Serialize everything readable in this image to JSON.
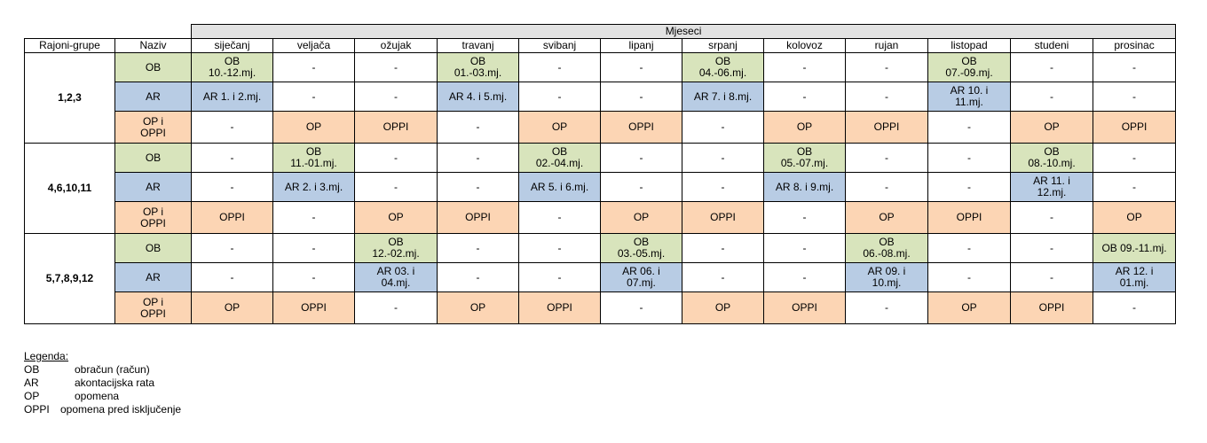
{
  "header": {
    "months_label": "Mjeseci",
    "group_col": "Rajoni-grupe",
    "name_col": "Naziv",
    "months": [
      "siječanj",
      "veljača",
      "ožujak",
      "travanj",
      "svibanj",
      "lipanj",
      "srpanj",
      "kolovoz",
      "rujan",
      "listopad",
      "studeni",
      "prosinac"
    ]
  },
  "groups": [
    {
      "label": "1,2,3",
      "rows": [
        {
          "type": "OB",
          "cells": [
            {
              "t": "OB\n10.-12.mj.",
              "c": "ob"
            },
            {
              "t": "-",
              "c": "none"
            },
            {
              "t": "-",
              "c": "none"
            },
            {
              "t": "OB\n01.-03.mj.",
              "c": "ob"
            },
            {
              "t": "-",
              "c": "none"
            },
            {
              "t": "-",
              "c": "none"
            },
            {
              "t": "OB\n04.-06.mj.",
              "c": "ob"
            },
            {
              "t": "-",
              "c": "none"
            },
            {
              "t": "-",
              "c": "none"
            },
            {
              "t": "OB\n07.-09.mj.",
              "c": "ob"
            },
            {
              "t": "-",
              "c": "none"
            },
            {
              "t": "-",
              "c": "none"
            }
          ]
        },
        {
          "type": "AR",
          "cells": [
            {
              "t": "AR 1. i 2.mj.",
              "c": "ar"
            },
            {
              "t": "-",
              "c": "none"
            },
            {
              "t": "-",
              "c": "none"
            },
            {
              "t": "AR 4. i 5.mj.",
              "c": "ar"
            },
            {
              "t": "-",
              "c": "none"
            },
            {
              "t": "-",
              "c": "none"
            },
            {
              "t": "AR 7. i 8.mj.",
              "c": "ar"
            },
            {
              "t": "-",
              "c": "none"
            },
            {
              "t": "-",
              "c": "none"
            },
            {
              "t": "AR 10. i\n11.mj.",
              "c": "ar"
            },
            {
              "t": "-",
              "c": "none"
            },
            {
              "t": "-",
              "c": "none"
            }
          ]
        },
        {
          "type": "OP i\nOPPI",
          "cells": [
            {
              "t": "-",
              "c": "none"
            },
            {
              "t": "OP",
              "c": "op"
            },
            {
              "t": "OPPI",
              "c": "op"
            },
            {
              "t": "-",
              "c": "none"
            },
            {
              "t": "OP",
              "c": "op"
            },
            {
              "t": "OPPI",
              "c": "op"
            },
            {
              "t": "-",
              "c": "none"
            },
            {
              "t": "OP",
              "c": "op"
            },
            {
              "t": "OPPI",
              "c": "op"
            },
            {
              "t": "-",
              "c": "none"
            },
            {
              "t": "OP",
              "c": "op"
            },
            {
              "t": "OPPI",
              "c": "op"
            }
          ]
        }
      ]
    },
    {
      "label": "4,6,10,11",
      "rows": [
        {
          "type": "OB",
          "cells": [
            {
              "t": "-",
              "c": "none"
            },
            {
              "t": "OB\n11.-01.mj.",
              "c": "ob"
            },
            {
              "t": "-",
              "c": "none"
            },
            {
              "t": "-",
              "c": "none"
            },
            {
              "t": "OB\n02.-04.mj.",
              "c": "ob"
            },
            {
              "t": "-",
              "c": "none"
            },
            {
              "t": "-",
              "c": "none"
            },
            {
              "t": "OB\n05.-07.mj.",
              "c": "ob"
            },
            {
              "t": "-",
              "c": "none"
            },
            {
              "t": "-",
              "c": "none"
            },
            {
              "t": "OB\n08.-10.mj.",
              "c": "ob"
            },
            {
              "t": "-",
              "c": "none"
            }
          ]
        },
        {
          "type": "AR",
          "cells": [
            {
              "t": "-",
              "c": "none"
            },
            {
              "t": "AR 2. i 3.mj.",
              "c": "ar"
            },
            {
              "t": "-",
              "c": "none"
            },
            {
              "t": "-",
              "c": "none"
            },
            {
              "t": "AR 5. i 6.mj.",
              "c": "ar"
            },
            {
              "t": "-",
              "c": "none"
            },
            {
              "t": "-",
              "c": "none"
            },
            {
              "t": "AR 8. i 9.mj.",
              "c": "ar"
            },
            {
              "t": "-",
              "c": "none"
            },
            {
              "t": "-",
              "c": "none"
            },
            {
              "t": "AR 11. i\n12.mj.",
              "c": "ar"
            },
            {
              "t": "-",
              "c": "none"
            }
          ]
        },
        {
          "type": "OP i\nOPPI",
          "cells": [
            {
              "t": "OPPI",
              "c": "op"
            },
            {
              "t": "-",
              "c": "none"
            },
            {
              "t": "OP",
              "c": "op"
            },
            {
              "t": "OPPI",
              "c": "op"
            },
            {
              "t": "-",
              "c": "none"
            },
            {
              "t": "OP",
              "c": "op"
            },
            {
              "t": "OPPI",
              "c": "op"
            },
            {
              "t": "-",
              "c": "none"
            },
            {
              "t": "OP",
              "c": "op"
            },
            {
              "t": "OPPI",
              "c": "op"
            },
            {
              "t": "-",
              "c": "none"
            },
            {
              "t": "OP",
              "c": "op"
            }
          ]
        }
      ]
    },
    {
      "label": "5,7,8,9,12",
      "rows": [
        {
          "type": "OB",
          "cells": [
            {
              "t": "-",
              "c": "none"
            },
            {
              "t": "-",
              "c": "none"
            },
            {
              "t": "OB\n12.-02.mj.",
              "c": "ob"
            },
            {
              "t": "-",
              "c": "none"
            },
            {
              "t": "-",
              "c": "none"
            },
            {
              "t": "OB\n03.-05.mj.",
              "c": "ob"
            },
            {
              "t": "-",
              "c": "none"
            },
            {
              "t": "-",
              "c": "none"
            },
            {
              "t": "OB\n06.-08.mj.",
              "c": "ob"
            },
            {
              "t": "-",
              "c": "none"
            },
            {
              "t": "-",
              "c": "none"
            },
            {
              "t": "OB 09.-11.mj.",
              "c": "ob"
            }
          ]
        },
        {
          "type": "AR",
          "cells": [
            {
              "t": "-",
              "c": "none"
            },
            {
              "t": "-",
              "c": "none"
            },
            {
              "t": "AR 03. i\n04.mj.",
              "c": "ar"
            },
            {
              "t": "-",
              "c": "none"
            },
            {
              "t": "-",
              "c": "none"
            },
            {
              "t": "AR 06. i\n07.mj.",
              "c": "ar"
            },
            {
              "t": "-",
              "c": "none"
            },
            {
              "t": "-",
              "c": "none"
            },
            {
              "t": "AR 09. i\n10.mj.",
              "c": "ar"
            },
            {
              "t": "-",
              "c": "none"
            },
            {
              "t": "-",
              "c": "none"
            },
            {
              "t": "AR 12. i\n01.mj.",
              "c": "ar"
            }
          ]
        },
        {
          "type": "OP i\nOPPI",
          "cells": [
            {
              "t": "OP",
              "c": "op"
            },
            {
              "t": "OPPI",
              "c": "op"
            },
            {
              "t": "-",
              "c": "none"
            },
            {
              "t": "OP",
              "c": "op"
            },
            {
              "t": "OPPI",
              "c": "op"
            },
            {
              "t": "-",
              "c": "none"
            },
            {
              "t": "OP",
              "c": "op"
            },
            {
              "t": "OPPI",
              "c": "op"
            },
            {
              "t": "-",
              "c": "none"
            },
            {
              "t": "OP",
              "c": "op"
            },
            {
              "t": "OPPI",
              "c": "op"
            },
            {
              "t": "-",
              "c": "none"
            }
          ]
        }
      ]
    }
  ],
  "colors": {
    "ob": "#d8e4bc",
    "ar": "#b8cce4",
    "op": "#fcd5b4",
    "header_bar": "#e2e2e2"
  },
  "legend": {
    "title": "Legenda:",
    "items": [
      {
        "code": "OB",
        "desc": "obračun (račun)"
      },
      {
        "code": "AR",
        "desc": "akontacijska rata"
      },
      {
        "code": "OP",
        "desc": "opomena"
      },
      {
        "code": "OPPI",
        "desc": "opomena pred isključenje"
      }
    ]
  }
}
